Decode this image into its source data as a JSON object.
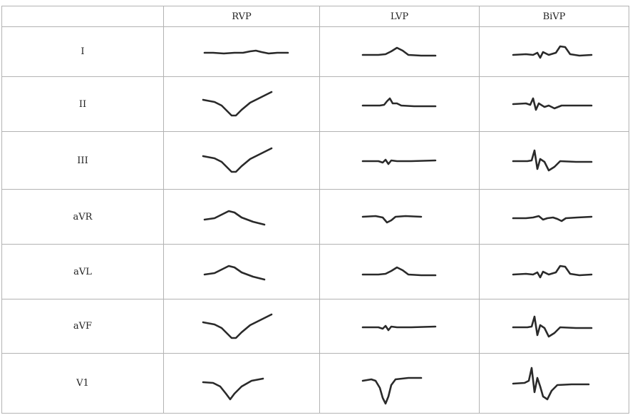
{
  "table": {
    "corner": "",
    "columns": [
      "RVP",
      "LVP",
      "BiVP"
    ],
    "rows": [
      {
        "lead": "I",
        "traces": [
          "flat-low-bump",
          "small-hump",
          "notch-hump"
        ]
      },
      {
        "lead": "II",
        "traces": [
          "deep-valley-rise",
          "small-spike",
          "spiky-notches"
        ]
      },
      {
        "lead": "III",
        "traces": [
          "deep-valley-rise",
          "tiny-notches",
          "spike-dip"
        ]
      },
      {
        "lead": "aVR",
        "traces": [
          "broad-hump",
          "small-dip",
          "small-notches"
        ]
      },
      {
        "lead": "aVL",
        "traces": [
          "broad-hump",
          "small-hump",
          "notch-hump"
        ]
      },
      {
        "lead": "aVF",
        "traces": [
          "deep-valley-rise",
          "tiny-notches",
          "spike-dip"
        ]
      },
      {
        "lead": "V1",
        "traces": [
          "deep-valley",
          "sharp-deep-dip",
          "tall-spike-dip"
        ]
      }
    ]
  },
  "colors": {
    "grid": "#b3b3b3",
    "trace": "#2a2a2a"
  }
}
